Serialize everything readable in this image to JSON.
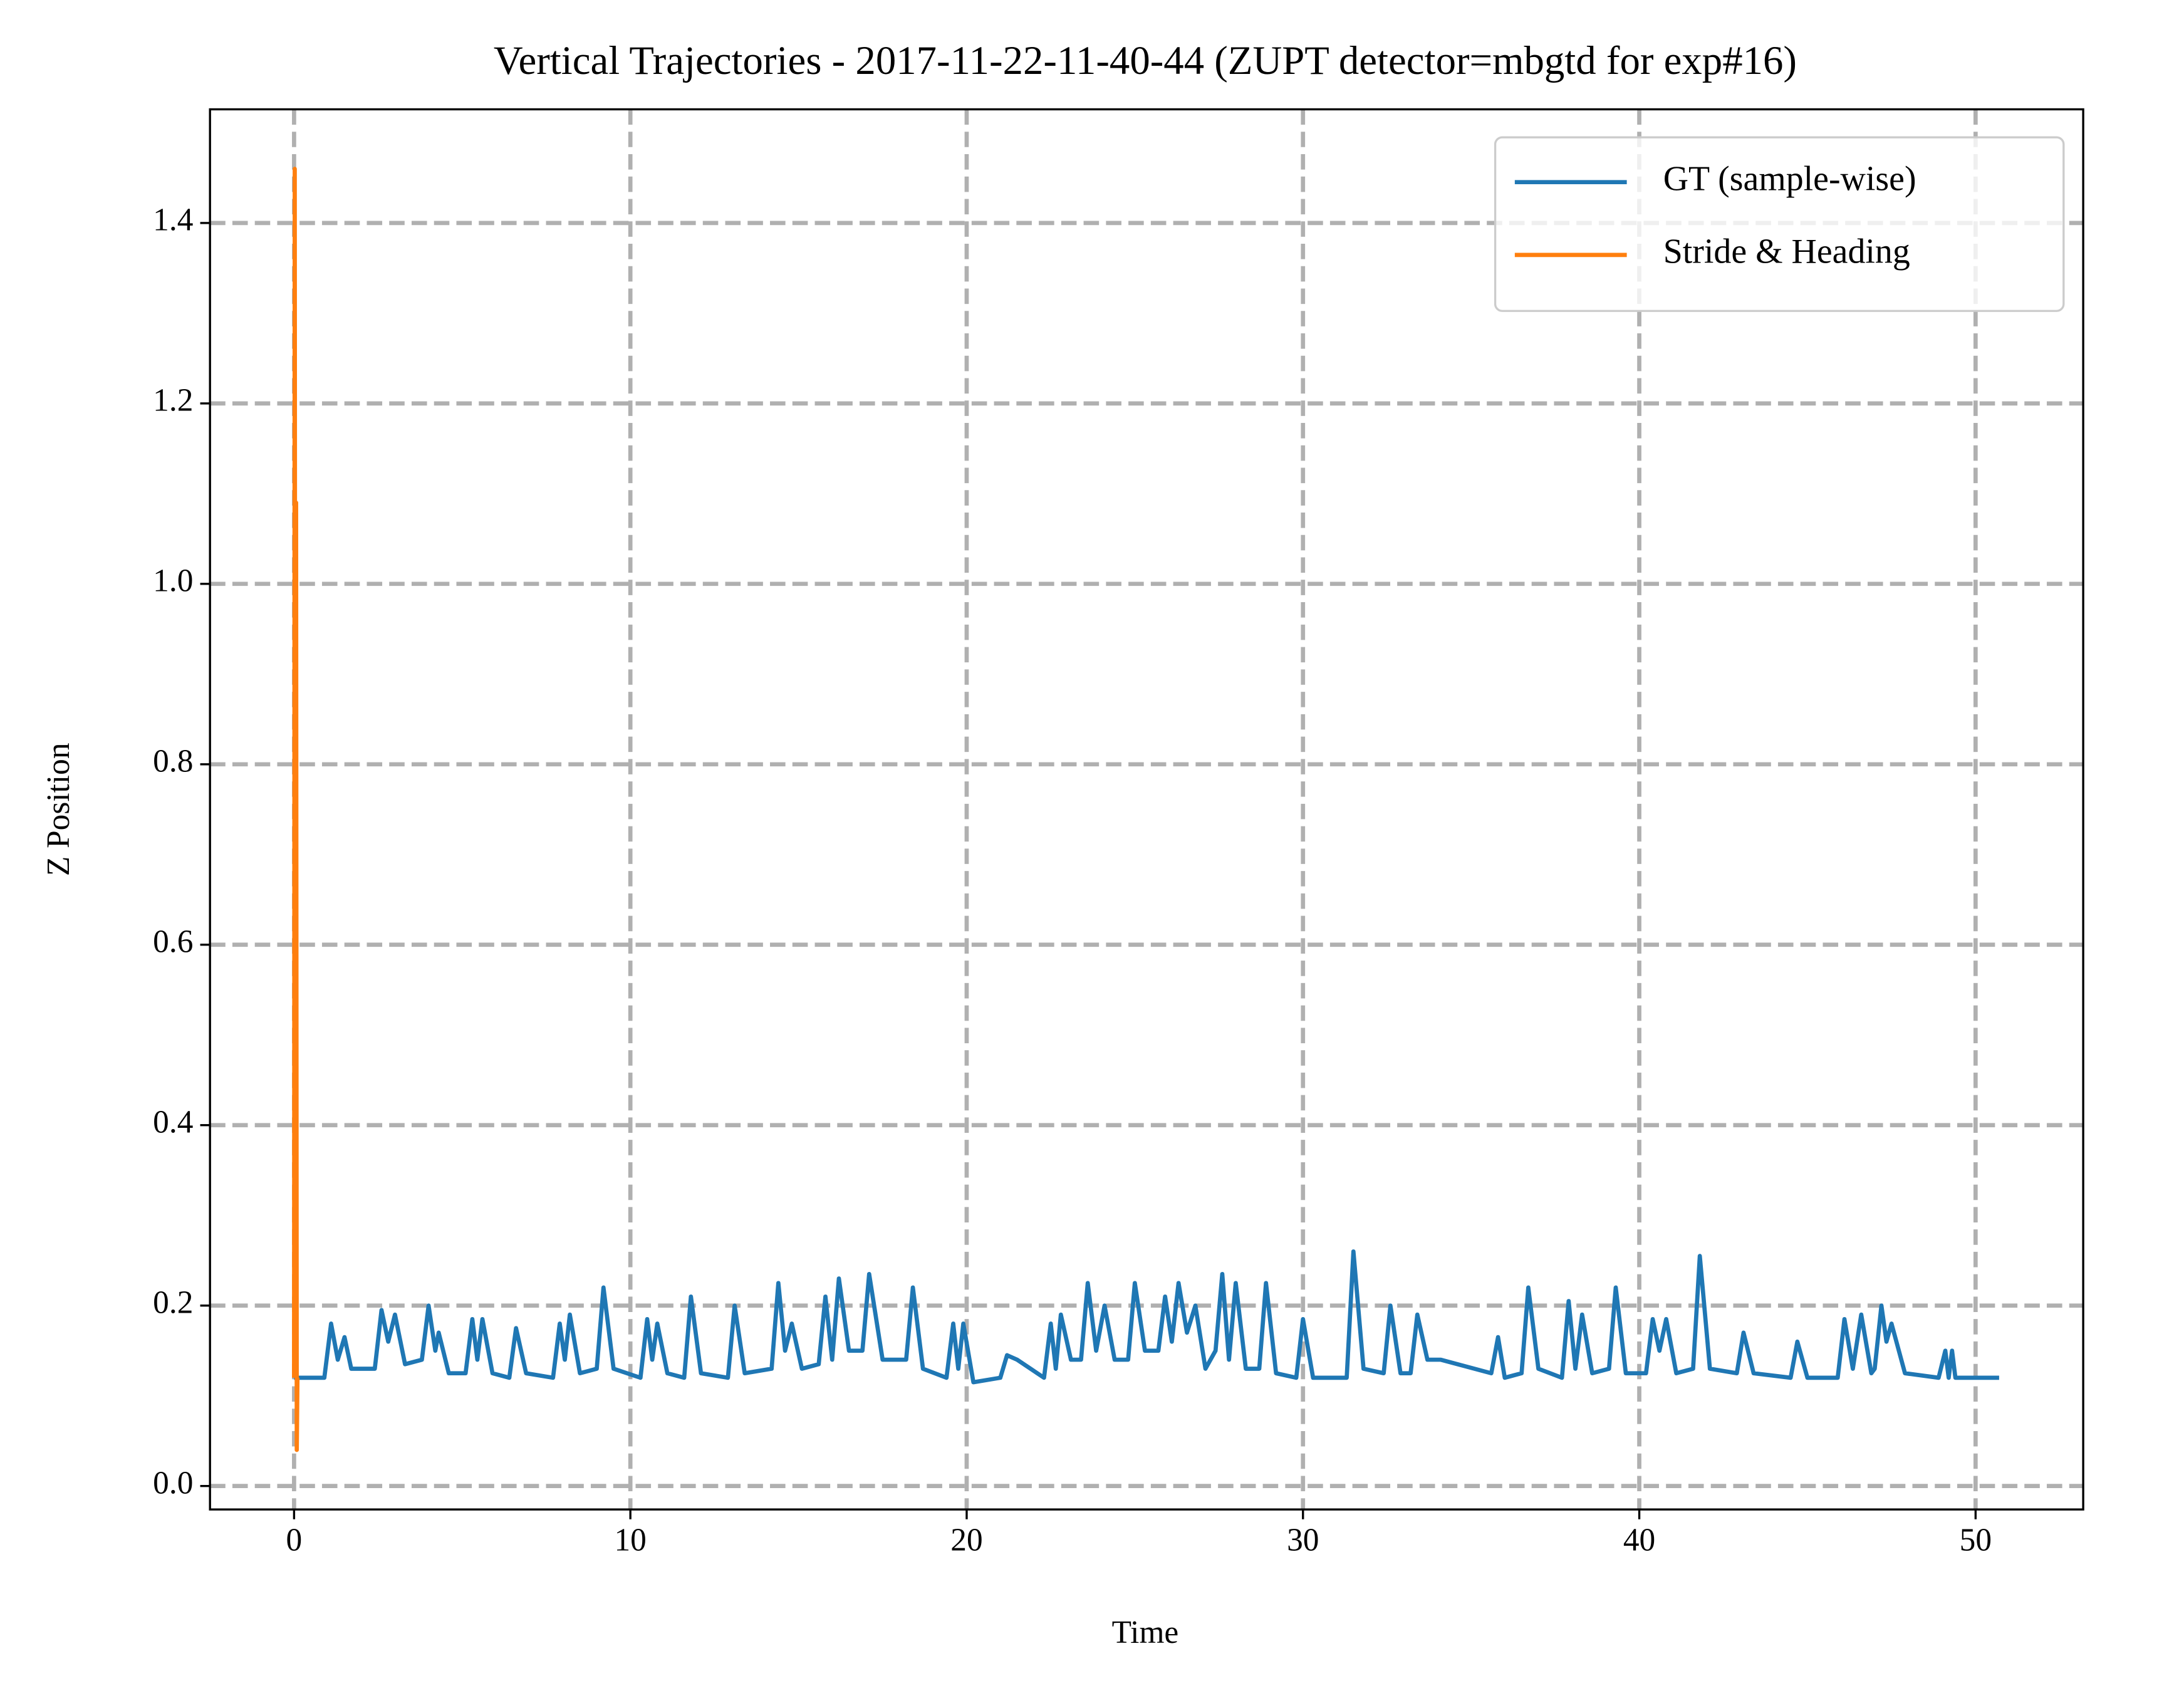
{
  "chart_data": {
    "type": "line",
    "title": "Vertical Trajectories - 2017-11-22-11-40-44 (ZUPT detector=mbgtd for exp#16)",
    "xlabel": "Time",
    "ylabel": "Z Position",
    "xlim": [
      -2.5,
      53.2
    ],
    "ylim": [
      -0.026,
      1.526
    ],
    "xticks": [
      0,
      10,
      20,
      30,
      40,
      50
    ],
    "yticks": [
      {
        "value": 0,
        "label": "0.0"
      },
      0.2,
      0.4,
      0.6,
      0.8,
      {
        "value": 1,
        "label": "1.0"
      },
      1.2,
      1.4
    ],
    "grid": true,
    "legend": "upper right",
    "series": [
      {
        "name": "GT (sample-wise)",
        "color": "#1f77b4",
        "x": [
          0,
          0.9,
          1.1,
          1.3,
          1.5,
          1.7,
          2.4,
          2.6,
          2.8,
          3.0,
          3.3,
          3.8,
          4.0,
          4.2,
          4.3,
          4.6,
          5.1,
          5.3,
          5.45,
          5.6,
          5.9,
          6.4,
          6.6,
          6.9,
          7.7,
          7.9,
          8.05,
          8.2,
          8.5,
          9.0,
          9.2,
          9.5,
          10.3,
          10.5,
          10.65,
          10.8,
          11.1,
          11.6,
          11.8,
          12.1,
          12.9,
          13.1,
          13.4,
          14.2,
          14.4,
          14.6,
          14.8,
          15.1,
          15.6,
          15.8,
          16.0,
          16.2,
          16.5,
          16.9,
          17.1,
          17.5,
          18.2,
          18.4,
          18.7,
          19.4,
          19.6,
          19.75,
          19.9,
          20.2,
          21.0,
          21.2,
          21.5,
          22.3,
          22.5,
          22.65,
          22.8,
          23.1,
          23.4,
          23.6,
          23.85,
          24.1,
          24.4,
          24.8,
          25.0,
          25.3,
          25.7,
          25.9,
          26.1,
          26.3,
          26.55,
          26.8,
          27.1,
          27.4,
          27.6,
          27.8,
          28.0,
          28.3,
          28.7,
          28.9,
          29.2,
          29.8,
          30.0,
          30.3,
          31.3,
          31.5,
          31.8,
          32.4,
          32.6,
          32.9,
          33.2,
          33.4,
          33.7,
          34.1,
          35.6,
          35.8,
          36.0,
          36.5,
          36.7,
          37.0,
          37.7,
          37.9,
          38.1,
          38.3,
          38.6,
          39.1,
          39.3,
          39.6,
          40.2,
          40.4,
          40.6,
          40.8,
          41.1,
          41.6,
          41.8,
          42.1,
          42.9,
          43.1,
          43.4,
          44.5,
          44.7,
          45.0,
          45.9,
          46.1,
          46.35,
          46.6,
          46.9,
          47.0,
          47.2,
          47.35,
          47.5,
          47.9,
          48.9,
          49.1,
          49.2,
          49.3,
          49.4,
          50.7
        ],
        "values": [
          0.12,
          0.12,
          0.18,
          0.14,
          0.165,
          0.13,
          0.13,
          0.195,
          0.16,
          0.19,
          0.135,
          0.14,
          0.2,
          0.15,
          0.17,
          0.125,
          0.125,
          0.185,
          0.14,
          0.185,
          0.125,
          0.12,
          0.175,
          0.125,
          0.12,
          0.18,
          0.14,
          0.19,
          0.125,
          0.13,
          0.22,
          0.13,
          0.12,
          0.185,
          0.14,
          0.18,
          0.125,
          0.12,
          0.21,
          0.125,
          0.12,
          0.2,
          0.125,
          0.13,
          0.225,
          0.15,
          0.18,
          0.13,
          0.135,
          0.21,
          0.14,
          0.23,
          0.15,
          0.15,
          0.235,
          0.14,
          0.14,
          0.22,
          0.13,
          0.12,
          0.18,
          0.13,
          0.18,
          0.115,
          0.12,
          0.145,
          0.14,
          0.12,
          0.18,
          0.13,
          0.19,
          0.14,
          0.14,
          0.225,
          0.15,
          0.2,
          0.14,
          0.14,
          0.225,
          0.15,
          0.15,
          0.21,
          0.16,
          0.225,
          0.17,
          0.2,
          0.13,
          0.15,
          0.235,
          0.14,
          0.225,
          0.13,
          0.13,
          0.225,
          0.125,
          0.12,
          0.185,
          0.12,
          0.12,
          0.26,
          0.13,
          0.125,
          0.2,
          0.125,
          0.125,
          0.19,
          0.14,
          0.14,
          0.125,
          0.165,
          0.12,
          0.125,
          0.22,
          0.13,
          0.12,
          0.205,
          0.13,
          0.19,
          0.125,
          0.13,
          0.22,
          0.125,
          0.125,
          0.185,
          0.15,
          0.185,
          0.125,
          0.13,
          0.255,
          0.13,
          0.125,
          0.17,
          0.125,
          0.12,
          0.16,
          0.12,
          0.12,
          0.185,
          0.13,
          0.19,
          0.125,
          0.13,
          0.2,
          0.16,
          0.18,
          0.125,
          0.12,
          0.15,
          0.12,
          0.15,
          0.12,
          0.12
        ]
      },
      {
        "name": "Stride & Heading",
        "color": "#ff7f0e",
        "x": [
          0,
          0.02,
          0.04,
          0.06,
          0.08,
          0.1
        ],
        "values": [
          0.12,
          1.46,
          0.3,
          1.09,
          0.04,
          0.12
        ]
      }
    ]
  }
}
